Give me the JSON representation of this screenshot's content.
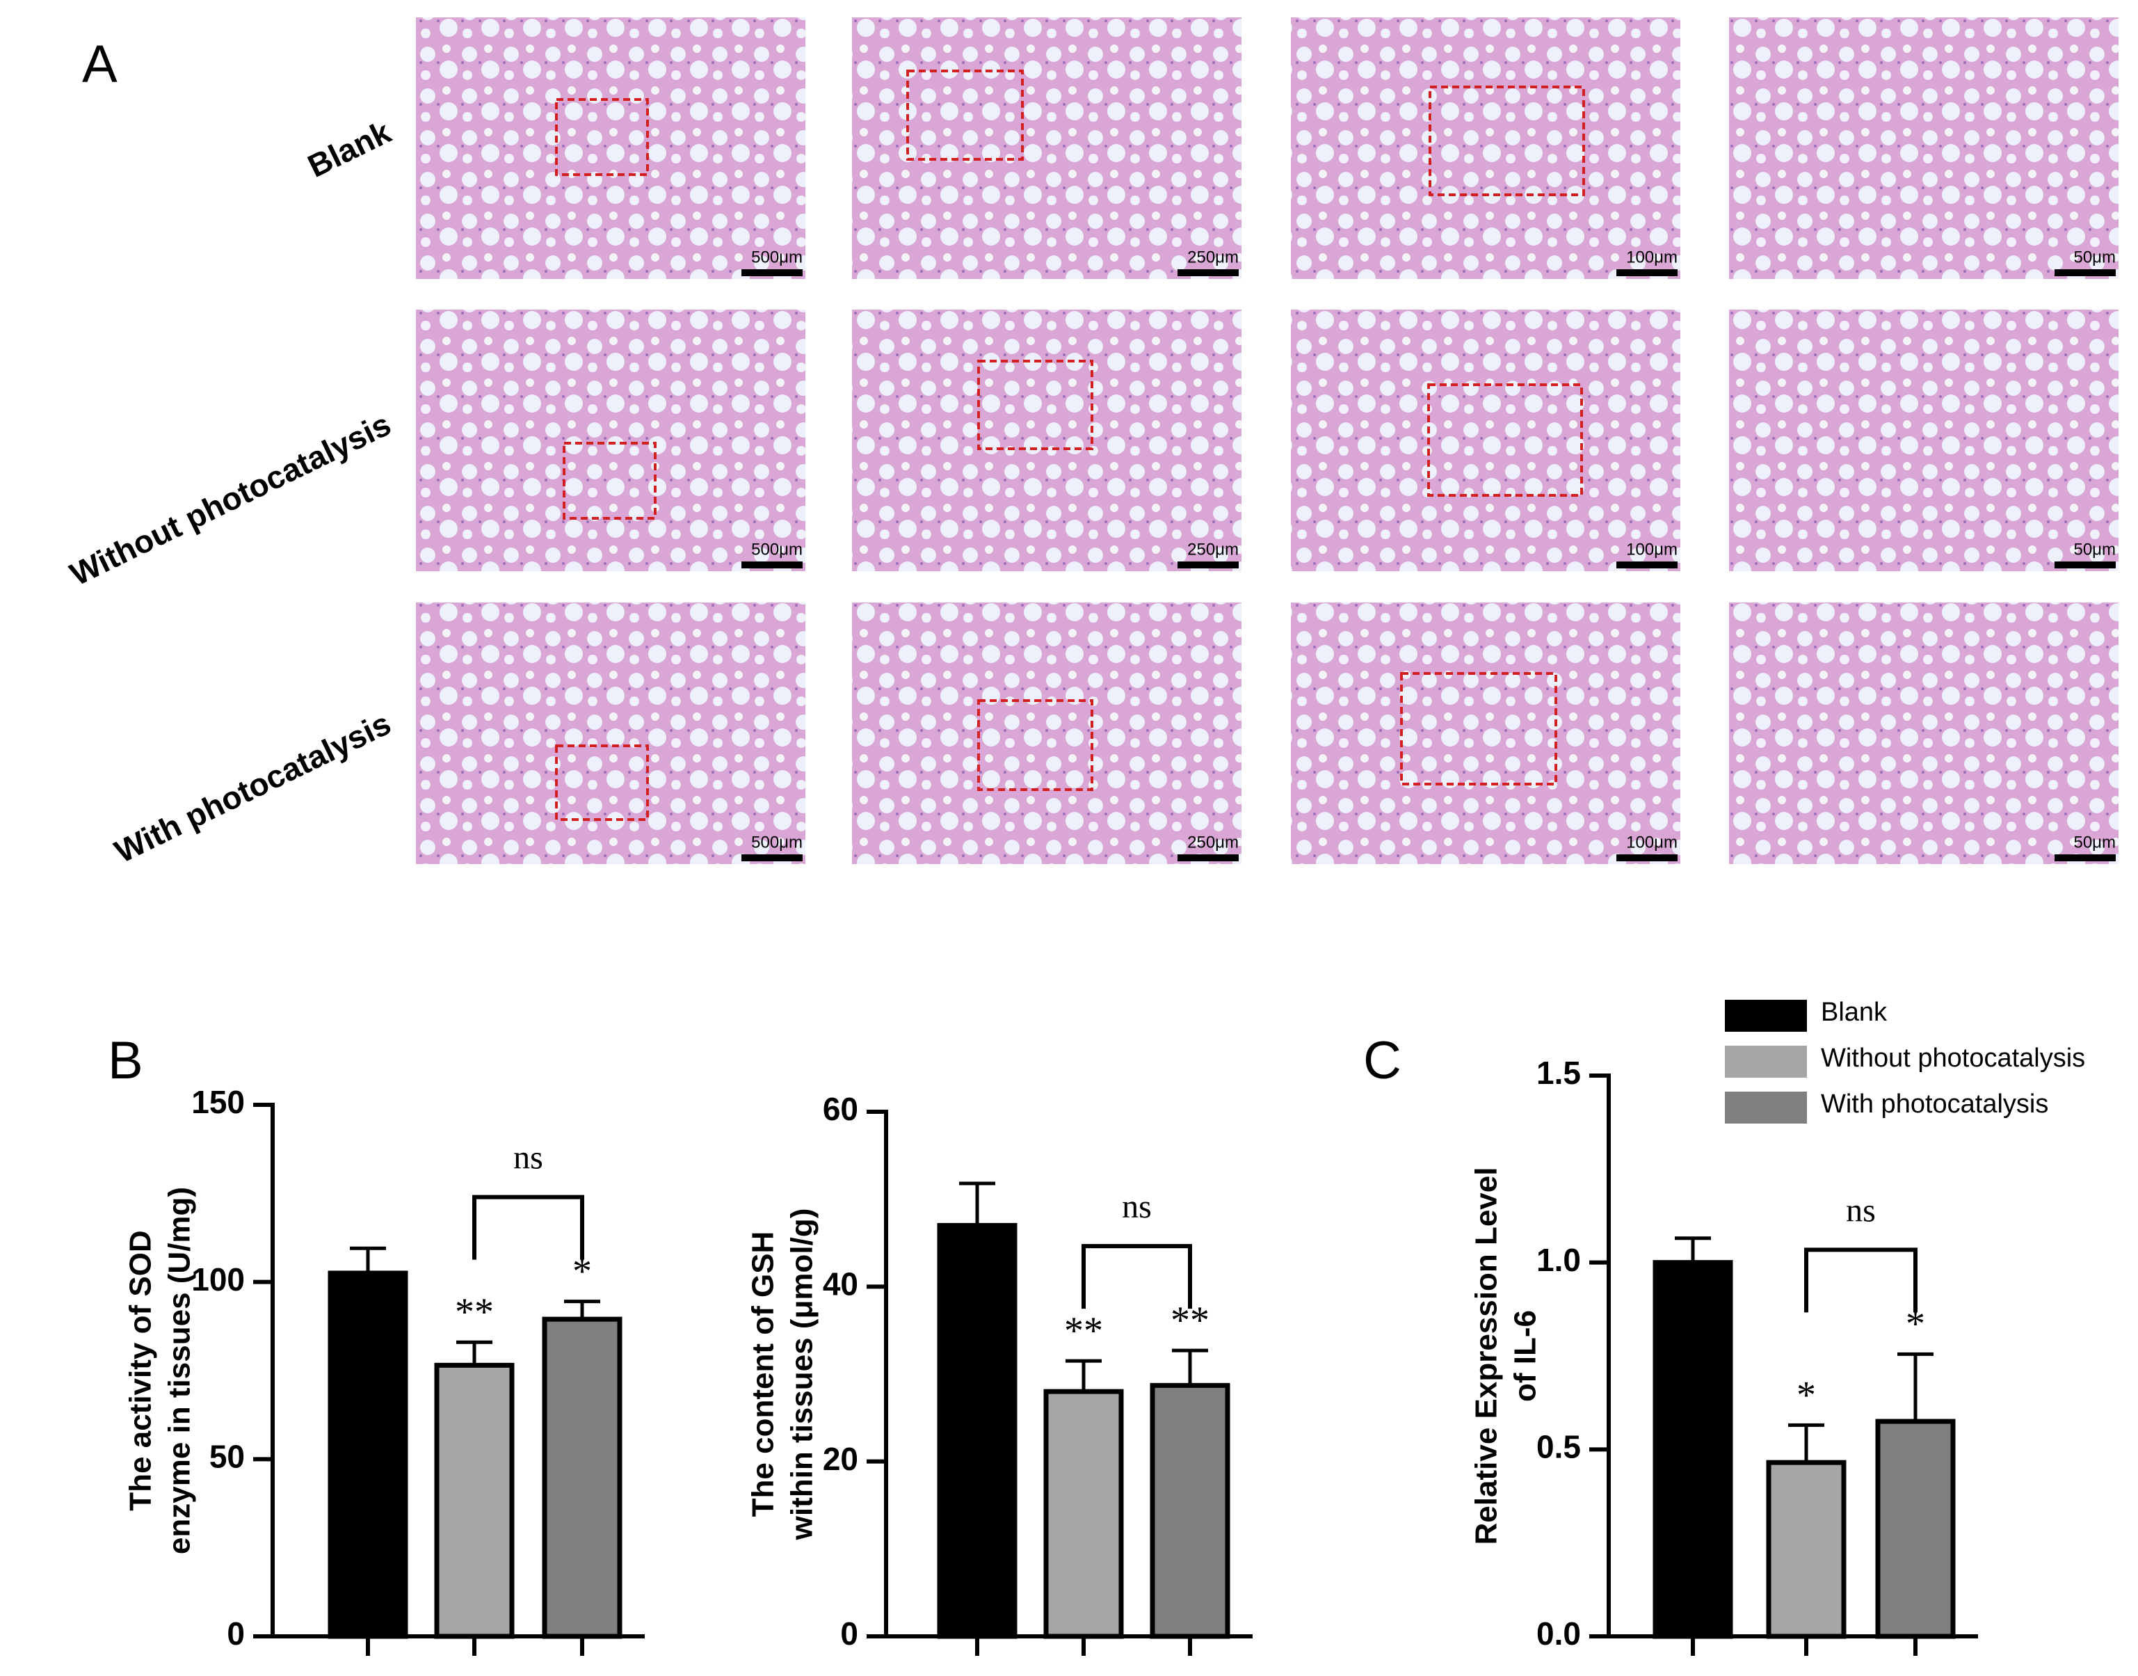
{
  "panel_a": {
    "label": "A",
    "rows": [
      "Blank",
      "Without photocatalysis",
      "With photocatalysis"
    ],
    "scales": [
      "500μm",
      "250μm",
      "100μm",
      "50μm"
    ]
  },
  "panel_b_label": "B",
  "panel_c_label": "C",
  "chart_data": [
    {
      "type": "bar",
      "ylabel": [
        "The activity of SOD",
        "enzyme in tissues (U/mg)"
      ],
      "categories": [
        null,
        null,
        null
      ],
      "values": [
        102.5,
        76.5,
        89.5
      ],
      "errors": [
        7,
        6.5,
        5
      ],
      "colors": [
        "#000000",
        "#a6a6a9",
        "#808080"
      ],
      "significance": [
        null,
        "**",
        "*"
      ],
      "bracket_label": "ns",
      "ylim": [
        0,
        150
      ],
      "yticks": [
        0,
        50,
        100,
        150
      ]
    },
    {
      "type": "bar",
      "ylabel": [
        "The content of GSH",
        "within tissues (μmol/g)"
      ],
      "categories": [
        null,
        null,
        null
      ],
      "values": [
        47,
        28,
        28.7
      ],
      "errors": [
        4.8,
        3.5,
        4
      ],
      "colors": [
        "#000000",
        "#a6a6a9",
        "#808080"
      ],
      "significance": [
        null,
        "**",
        "**"
      ],
      "bracket_label": "ns",
      "ylim": [
        0,
        60
      ],
      "yticks": [
        0,
        20,
        40,
        60
      ]
    },
    {
      "type": "bar",
      "ylabel": [
        "Relative Expression Level",
        "of IL-6"
      ],
      "categories": [
        null,
        null,
        null
      ],
      "values": [
        1.0,
        0.465,
        0.575
      ],
      "errors": [
        0.065,
        0.1,
        0.18
      ],
      "colors": [
        "#000000",
        "#a6a6a9",
        "#808080"
      ],
      "significance": [
        null,
        "*",
        "*"
      ],
      "bracket_label": "ns",
      "legend": [
        "Blank",
        "Without photocatalysis",
        "With photocatalysis"
      ],
      "ylim": [
        0,
        1.5
      ],
      "yticks": [
        {
          "value": 0,
          "label": "0.0"
        },
        0.5,
        {
          "value": 1,
          "label": "1.0"
        },
        1.5
      ]
    }
  ]
}
